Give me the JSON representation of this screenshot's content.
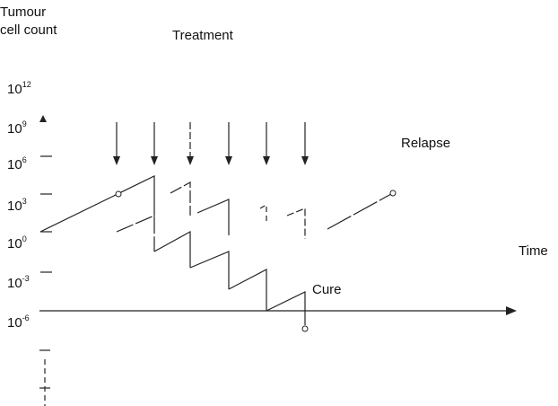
{
  "y_axis_label": [
    "Tumour",
    "cell count"
  ],
  "treatment_label": "Treatment",
  "ticks": [
    {
      "base": "10",
      "exp": "12"
    },
    {
      "base": "10",
      "exp": "9"
    },
    {
      "base": "10",
      "exp": "6"
    },
    {
      "base": "10",
      "exp": "3"
    },
    {
      "base": "10",
      "exp": "0"
    },
    {
      "base": "10",
      "exp": "-3"
    },
    {
      "base": "10",
      "exp": "-6"
    }
  ],
  "relapse_label": "Relapse",
  "cure_label": "Cure",
  "time_label": "Time"
}
